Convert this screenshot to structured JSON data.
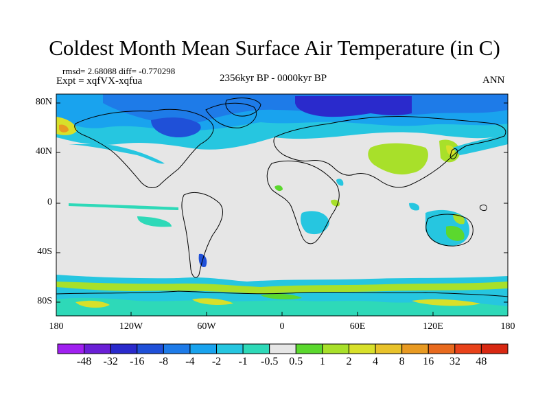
{
  "title": "Coldest Month Mean Surface Air Temperature (in C)",
  "stats": "rmsd= 2.68088 diff= -0.770298",
  "expt": "Expt = xqfVX-xqfua",
  "period": "2356kyr BP - 0000kyr BP",
  "season": "ANN",
  "lat_labels": [
    "80N",
    "40N",
    "0",
    "40S",
    "80S"
  ],
  "lon_labels": [
    "180",
    "120W",
    "60W",
    "0",
    "60E",
    "120E",
    "180"
  ],
  "colorbar": {
    "labels": [
      "-48",
      "-32",
      "-16",
      "-8",
      "-4",
      "-2",
      "-1",
      "-0.5",
      "0.5",
      "1",
      "2",
      "4",
      "8",
      "16",
      "32",
      "48"
    ],
    "colors": [
      "#a020f0",
      "#6a1fd6",
      "#2a2acc",
      "#1f50d8",
      "#1e7be8",
      "#19a3ee",
      "#26c6e0",
      "#2ed9b8",
      "#e6e6e6",
      "#5bd82e",
      "#a8e02a",
      "#d8e02a",
      "#e8c22a",
      "#e89a22",
      "#e86a1e",
      "#e8421a",
      "#d82812"
    ]
  }
}
